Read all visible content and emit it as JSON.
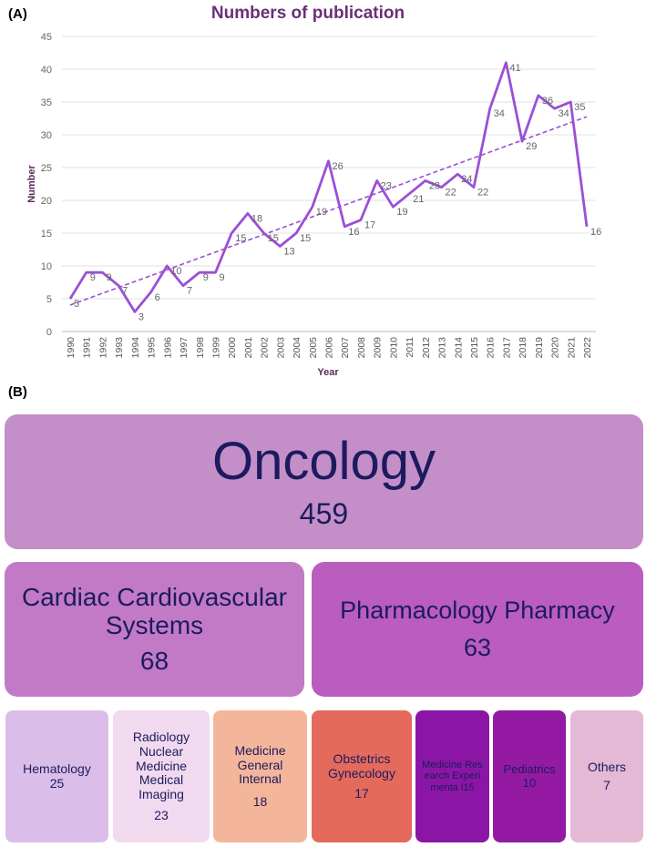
{
  "panel_a_label": "(A)",
  "panel_b_label": "(B)",
  "chart_data": {
    "type": "line",
    "title": "Numbers of publication",
    "xlabel": "Year",
    "ylabel": "Number",
    "ylim": [
      0,
      45
    ],
    "yticks": [
      0,
      5,
      10,
      15,
      20,
      25,
      30,
      35,
      40,
      45
    ],
    "grid": true,
    "trendline": "linear, dashed",
    "colors": {
      "line": "#9b4fd6",
      "title": "#6b2f78",
      "axis_label": "#5a2a5a"
    },
    "categories": [
      "1990",
      "1991",
      "1992",
      "1993",
      "1994",
      "1995",
      "1996",
      "1997",
      "1998",
      "1999",
      "2000",
      "2001",
      "2002",
      "2003",
      "2004",
      "2005",
      "2006",
      "2007",
      "2008",
      "2009",
      "2010",
      "2011",
      "2012",
      "2013",
      "2014",
      "2015",
      "2016",
      "2017",
      "2018",
      "2019",
      "2020",
      "2021",
      "2022"
    ],
    "values": [
      5,
      9,
      9,
      7,
      3,
      6,
      10,
      7,
      9,
      9,
      15,
      18,
      15,
      13,
      15,
      19,
      26,
      16,
      17,
      23,
      19,
      21,
      23,
      22,
      24,
      22,
      34,
      41,
      29,
      36,
      34,
      35,
      16
    ]
  },
  "treemap": {
    "tiles": [
      {
        "name": "Oncology",
        "value": "459",
        "color": "#c48ec8"
      },
      {
        "name": "Cardiac Cardiovascular Systems",
        "value": "68",
        "color": "#c37ac6"
      },
      {
        "name": "Pharmacology Pharmacy",
        "value": "63",
        "color": "#bb5cbf"
      },
      {
        "name": "Hematology",
        "value": "25",
        "color": "#dbbde9"
      },
      {
        "name": "Radiology Nuclear Medicine Medical Imaging",
        "value": "23",
        "color": "#f1d9ef"
      },
      {
        "name": "Medicine General Internal",
        "value": "18",
        "color": "#f4b69a"
      },
      {
        "name": "Obstetrics Gynecology",
        "value": "17",
        "color": "#e46a5c"
      },
      {
        "name": "Medicine Research Experimenta l",
        "value": "15",
        "color": "#8b16a5"
      },
      {
        "name": "Pediatrics",
        "value": "10",
        "color": "#941aa3"
      },
      {
        "name": "Others",
        "value": "7",
        "color": "#e3b9d6"
      }
    ]
  }
}
